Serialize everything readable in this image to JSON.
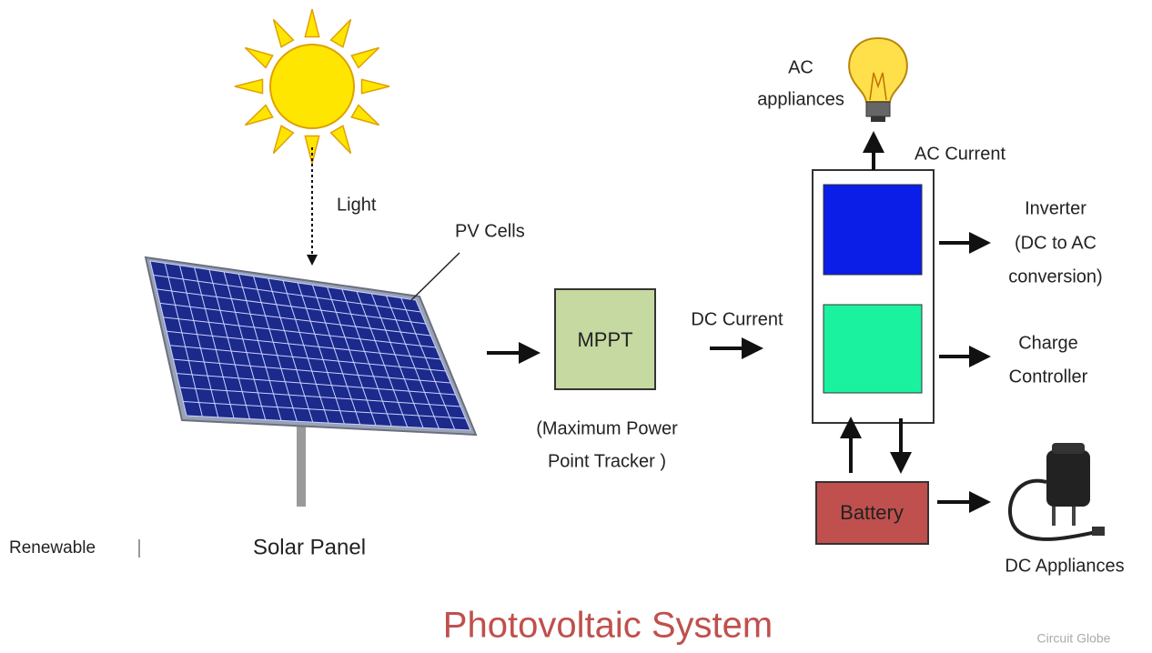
{
  "side_text": "Renewable",
  "labels": {
    "light": "Light",
    "pv_cells": "PV Cells",
    "solar_panel": "Solar Panel",
    "mppt": "MPPT",
    "mppt_full": [
      "(Maximum Power",
      "Point Tracker )"
    ],
    "dc_current": "DC Current",
    "ac_appliances": [
      "AC",
      "appliances"
    ],
    "ac_current": "AC Current",
    "inverter": [
      "Inverter",
      "(DC to AC",
      "conversion)"
    ],
    "charge_controller": [
      "Charge",
      "Controller"
    ],
    "battery": "Battery",
    "dc_appliances": "DC Appliances"
  },
  "title": "Photovoltaic System",
  "watermark": "Circuit Globe"
}
